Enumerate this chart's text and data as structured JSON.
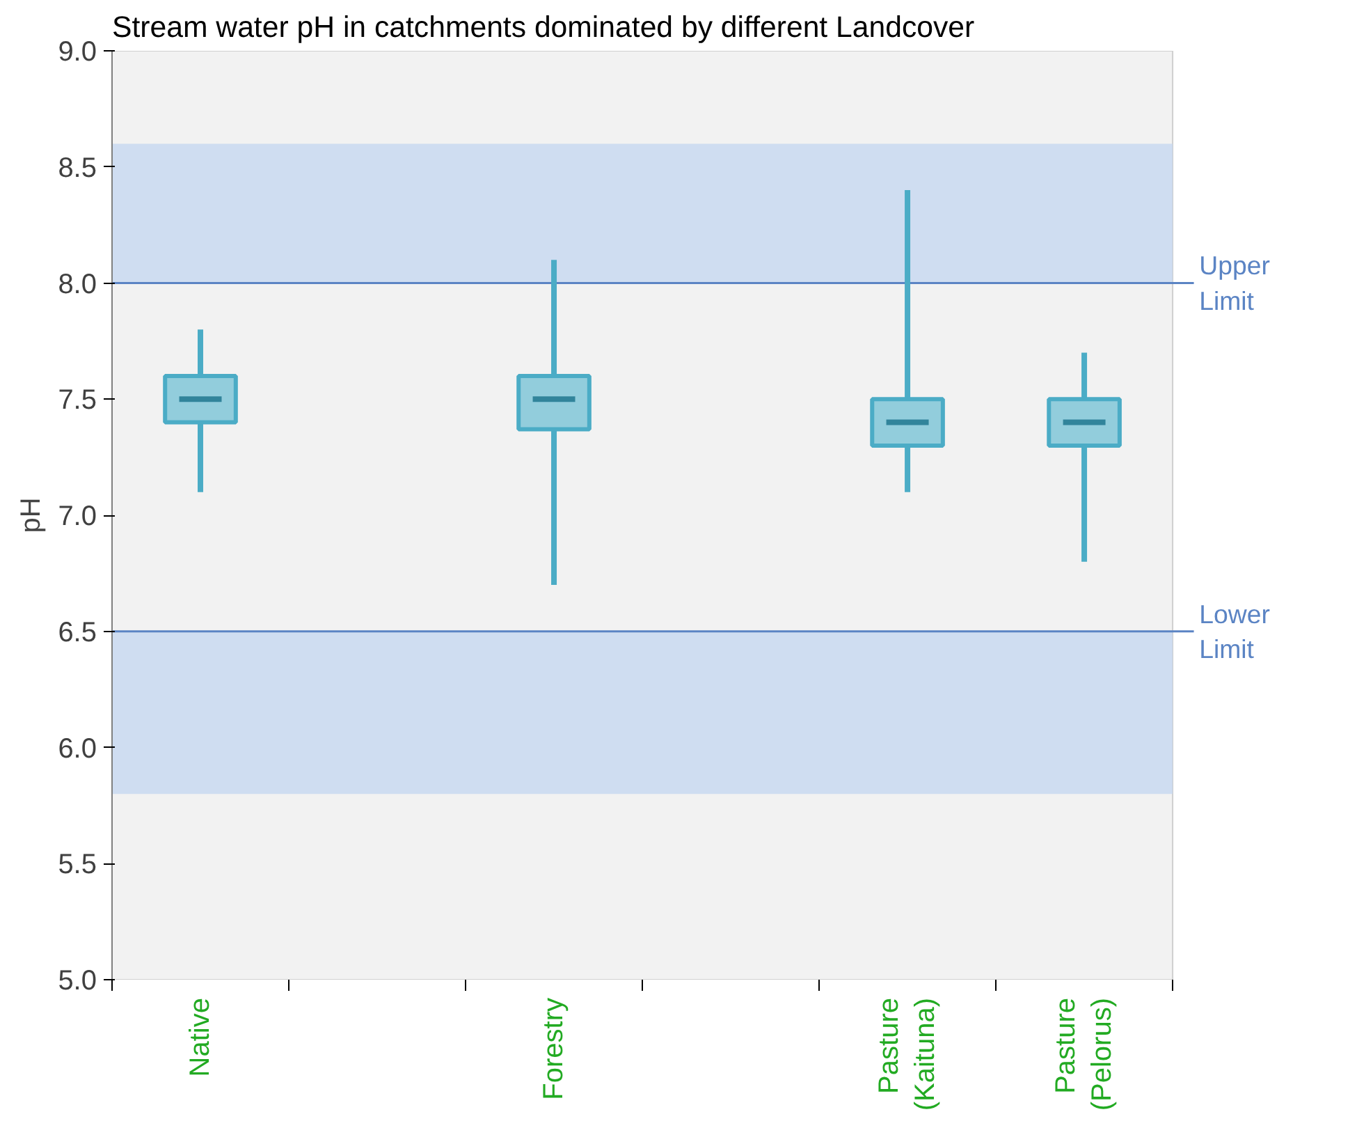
{
  "chart_data": {
    "type": "box",
    "title": "Stream water pH in catchments dominated by different Landcover",
    "ylabel": "pH",
    "categories": [
      "Native",
      null,
      "Forestry",
      null,
      "Pasture\n(Kaituna)",
      "Pasture\n(Pelorus)"
    ],
    "boxes": [
      {
        "low": 7.1,
        "q1": 7.4,
        "median": 7.5,
        "q3": 7.6,
        "high": 7.8
      },
      null,
      {
        "low": 6.7,
        "q1": 7.37,
        "median": 7.5,
        "q3": 7.6,
        "high": 8.1
      },
      null,
      {
        "low": 7.1,
        "q1": 7.3,
        "median": 7.4,
        "q3": 7.5,
        "high": 8.4
      },
      {
        "low": 6.8,
        "q1": 7.3,
        "median": 7.4,
        "q3": 7.5,
        "high": 7.7
      }
    ],
    "color": "#4bacc6",
    "ylim": [
      5.0,
      9.0
    ],
    "yticks": [
      {
        "value": 5,
        "label": "5.0"
      },
      {
        "value": 5.5,
        "label": "5.5"
      },
      {
        "value": 6,
        "label": "6.0"
      },
      {
        "value": 6.5,
        "label": "6.5"
      },
      {
        "value": 7,
        "label": "7.0"
      },
      {
        "value": 7.5,
        "label": "7.5"
      },
      {
        "value": 8,
        "label": "8.0"
      },
      {
        "value": 8.5,
        "label": "8.5"
      },
      {
        "value": 9,
        "label": "9.0"
      }
    ],
    "ref_lines": [
      {
        "axis": "y",
        "value": 8.0,
        "label": "Upper\nLimit",
        "color": "#5b84c4"
      },
      {
        "axis": "y",
        "value": 6.5,
        "label": "Lower\nLimit",
        "color": "#5b84c4"
      }
    ],
    "bands": [
      {
        "axis": "y",
        "from": 8.0,
        "to": 8.6,
        "color": "#c6d7f0"
      },
      {
        "axis": "y",
        "from": 5.8,
        "to": 6.5,
        "color": "#c6d7f0"
      }
    ]
  }
}
